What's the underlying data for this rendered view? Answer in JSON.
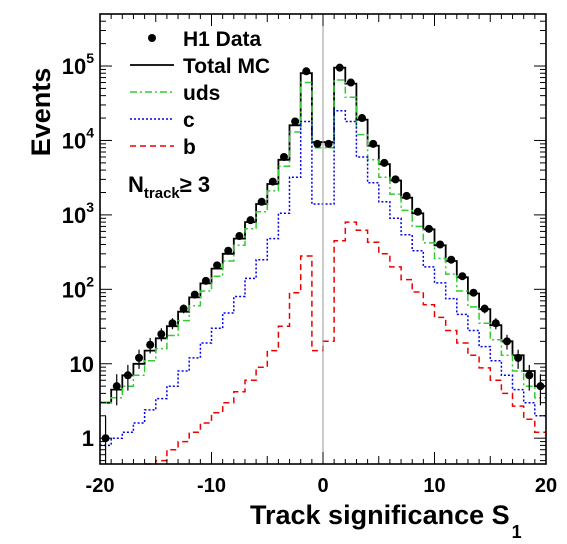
{
  "chart_data": {
    "type": "line",
    "xlabel": "Track significance S",
    "xlabel_subscript": "1",
    "ylabel": "Events",
    "xlim": [
      -20,
      20
    ],
    "ylim": [
      0.45,
      500000
    ],
    "y_scale": "log",
    "x_ticks": [
      -20,
      -10,
      0,
      10,
      20
    ],
    "x_tick_labels": [
      "-20",
      "-10",
      "0",
      "10",
      "20"
    ],
    "y_ticks": [
      1,
      10,
      100,
      1000,
      10000,
      100000
    ],
    "y_tick_labels": [
      {
        "base": "1",
        "exp": ""
      },
      {
        "base": "10",
        "exp": ""
      },
      {
        "base": "10",
        "exp": "2"
      },
      {
        "base": "10",
        "exp": "3"
      },
      {
        "base": "10",
        "exp": "4"
      },
      {
        "base": "10",
        "exp": "5"
      }
    ],
    "annotation": {
      "main": "N",
      "sub": "track",
      "rest": "≥ 3"
    },
    "legend": {
      "placement": "top-left",
      "entries": [
        {
          "label": "H1 Data",
          "style": "marker",
          "color": "#000000"
        },
        {
          "label": "Total MC",
          "style": "solid",
          "color": "#000000"
        },
        {
          "label": "uds",
          "style": "dashdot",
          "color": "#33cc33"
        },
        {
          "label": "c",
          "style": "dotted",
          "color": "#0000ee"
        },
        {
          "label": "b",
          "style": "dashed",
          "color": "#ee0000"
        }
      ]
    },
    "x": [
      -19.5,
      -18.5,
      -17.5,
      -16.5,
      -15.5,
      -14.5,
      -13.5,
      -12.5,
      -11.5,
      -10.5,
      -9.5,
      -8.5,
      -7.5,
      -6.5,
      -5.5,
      -4.5,
      -3.5,
      -2.5,
      -1.5,
      -0.5,
      0.5,
      1.5,
      2.5,
      3.5,
      4.5,
      5.5,
      6.5,
      7.5,
      8.5,
      9.5,
      10.5,
      11.5,
      12.5,
      13.5,
      14.5,
      15.5,
      16.5,
      17.5,
      18.5,
      19.5
    ],
    "series": [
      {
        "name": "H1 Data",
        "style": "marker",
        "color": "#000000",
        "values": [
          1.0,
          5.0,
          7.0,
          12.0,
          18.0,
          25.0,
          35.0,
          55.0,
          85.0,
          130.0,
          210.0,
          330.0,
          520.0,
          850.0,
          1500.0,
          2800.0,
          6000.0,
          18000.0,
          85000.0,
          9000.0,
          9000.0,
          95000.0,
          60000.0,
          20000.0,
          9000.0,
          5000.0,
          3000.0,
          1800.0,
          1100.0,
          650.0,
          400.0,
          250.0,
          150.0,
          90.0,
          55.0,
          35.0,
          20.0,
          12.0,
          7.0,
          5.0
        ]
      },
      {
        "name": "Total MC",
        "style": "solid",
        "color": "#000000",
        "values": [
          3.0,
          4.5,
          7.0,
          10.0,
          15.0,
          22.0,
          32.0,
          50.0,
          78.0,
          120.0,
          190.0,
          300.0,
          480.0,
          800.0,
          1400.0,
          2600.0,
          5500.0,
          16000.0,
          80000.0,
          9500.0,
          9500.0,
          95000.0,
          58000.0,
          19000.0,
          8500.0,
          4800.0,
          2900.0,
          1700.0,
          1050.0,
          640.0,
          390.0,
          240.0,
          145.0,
          88.0,
          54.0,
          33.0,
          20.0,
          13.0,
          8.0,
          5.0
        ]
      },
      {
        "name": "uds",
        "style": "dashdot",
        "color": "#33cc33",
        "values": [
          3.0,
          3.5,
          5.0,
          7.0,
          11.0,
          16.0,
          24.0,
          38.0,
          60.0,
          95.0,
          150.0,
          240.0,
          390.0,
          650.0,
          1100.0,
          2100.0,
          4500.0,
          13000.0,
          60000.0,
          8000.0,
          8000.0,
          65000.0,
          38000.0,
          12000.0,
          5500.0,
          3200.0,
          1900.0,
          1150.0,
          700.0,
          420.0,
          260.0,
          160.0,
          95.0,
          58.0,
          35.0,
          21.0,
          13.0,
          8.0,
          5.0,
          3.5
        ]
      },
      {
        "name": "c",
        "style": "dotted",
        "color": "#0000ee",
        "values": [
          0.8,
          1.0,
          1.2,
          1.6,
          2.4,
          3.4,
          5.0,
          8.0,
          12.0,
          19.0,
          30.0,
          48.0,
          80.0,
          140.0,
          250.0,
          480.0,
          1050.0,
          3200.0,
          18000.0,
          1400.0,
          1400.0,
          25000.0,
          18000.0,
          6000.0,
          2700.0,
          1500.0,
          900.0,
          540.0,
          330.0,
          200.0,
          122.0,
          75.0,
          46.0,
          28.0,
          17.0,
          11.0,
          7.0,
          4.5,
          3.0,
          2.0
        ]
      },
      {
        "name": "b",
        "style": "dashed",
        "color": "#ee0000",
        "values": [
          null,
          null,
          null,
          null,
          0.35,
          0.5,
          0.7,
          0.9,
          1.2,
          1.6,
          2.2,
          3.0,
          4.2,
          6.0,
          9.0,
          15.0,
          32.0,
          90.0,
          280.0,
          15.0,
          20.0,
          450.0,
          800.0,
          620.0,
          430.0,
          300.0,
          200.0,
          135.0,
          92.0,
          62.0,
          42.0,
          28.0,
          19.0,
          13.0,
          8.8,
          6.0,
          4.0,
          2.7,
          1.8,
          1.2
        ]
      }
    ]
  }
}
